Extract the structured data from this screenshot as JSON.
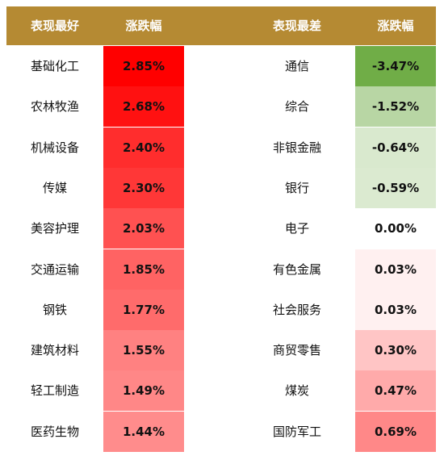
{
  "headers": {
    "best_name": "表现最好",
    "best_change": "涨跌幅",
    "worst_name": "表现最差",
    "worst_change": "涨跌幅"
  },
  "colors": {
    "header_bg": "#B58A33",
    "header_text": "#FFFFFF",
    "positive_strong": "#FF0000",
    "negative_strong": "#70AD47"
  },
  "chart_data": {
    "type": "table",
    "columns": [
      "表现最好",
      "涨跌幅",
      "表现最差",
      "涨跌幅"
    ],
    "best": [
      {
        "name": "基础化工",
        "change": "2.85%",
        "value": 2.85
      },
      {
        "name": "农林牧渔",
        "change": "2.68%",
        "value": 2.68
      },
      {
        "name": "机械设备",
        "change": "2.40%",
        "value": 2.4
      },
      {
        "name": "传媒",
        "change": "2.30%",
        "value": 2.3
      },
      {
        "name": "美容护理",
        "change": "2.03%",
        "value": 2.03
      },
      {
        "name": "交通运输",
        "change": "1.85%",
        "value": 1.85
      },
      {
        "name": "钢铁",
        "change": "1.77%",
        "value": 1.77
      },
      {
        "name": "建筑材料",
        "change": "1.55%",
        "value": 1.55
      },
      {
        "name": "轻工制造",
        "change": "1.49%",
        "value": 1.49
      },
      {
        "name": "医药生物",
        "change": "1.44%",
        "value": 1.44
      }
    ],
    "worst": [
      {
        "name": "通信",
        "change": "-3.47%",
        "value": -3.47
      },
      {
        "name": "综合",
        "change": "-1.52%",
        "value": -1.52
      },
      {
        "name": "非银金融",
        "change": "-0.64%",
        "value": -0.64
      },
      {
        "name": "银行",
        "change": "-0.59%",
        "value": -0.59
      },
      {
        "name": "电子",
        "change": "0.00%",
        "value": 0.0
      },
      {
        "name": "有色金属",
        "change": "0.03%",
        "value": 0.03
      },
      {
        "name": "社会服务",
        "change": "0.03%",
        "value": 0.03
      },
      {
        "name": "商贸零售",
        "change": "0.30%",
        "value": 0.3
      },
      {
        "name": "煤炭",
        "change": "0.47%",
        "value": 0.47
      },
      {
        "name": "国防军工",
        "change": "0.69%",
        "value": 0.69
      }
    ]
  }
}
